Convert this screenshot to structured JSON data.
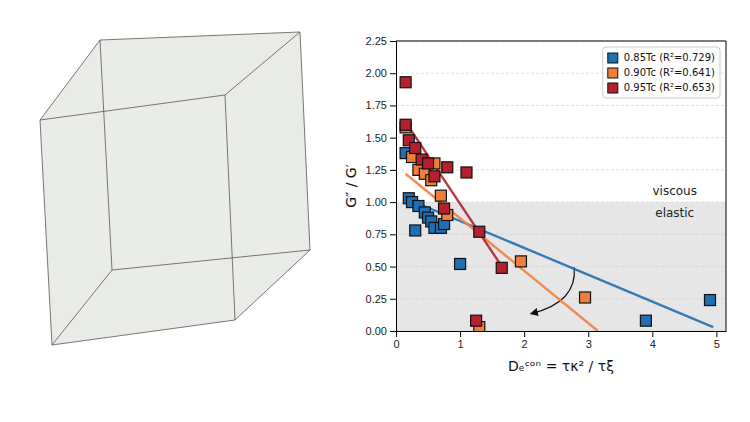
{
  "chart_data": {
    "type": "scatter",
    "x_label": "Dₑᶜᵒⁿ = τκ² / τξ",
    "y_label": "G″ / G′",
    "xlim": [
      0,
      5.15
    ],
    "ylim": [
      0,
      2.25
    ],
    "xticks": [
      0,
      1,
      2,
      3,
      4,
      5
    ],
    "yticks": [
      {
        "value": 0,
        "label": "0.00"
      },
      {
        "value": 0.25,
        "label": "0.25"
      },
      {
        "value": 0.5,
        "label": "0.50"
      },
      {
        "value": 0.75,
        "label": "0.75"
      },
      {
        "value": 1,
        "label": "1.00"
      },
      {
        "value": 1.25,
        "label": "1.25"
      },
      {
        "value": 1.5,
        "label": "1.50"
      },
      {
        "value": 1.75,
        "label": "1.75"
      },
      {
        "value": 2,
        "label": "2.00"
      },
      {
        "value": 2.25,
        "label": "2.25"
      }
    ],
    "grid": true,
    "legend": "upper right",
    "regions": [
      {
        "y0": 0,
        "y1": 1
      }
    ],
    "annotations": [
      {
        "text": "viscous",
        "x": 4.35,
        "y": 1.08
      },
      {
        "text": "elastic",
        "x": 4.35,
        "y": 0.91
      }
    ],
    "series": [
      {
        "name": "0.85Tc (R²=0.729)",
        "color": "#1f6fb4",
        "marker": "square",
        "x": [
          0.15,
          0.2,
          0.25,
          0.3,
          0.35,
          0.45,
          0.5,
          0.55,
          0.6,
          0.7,
          0.75,
          1.0,
          3.9,
          4.9
        ],
        "values": [
          1.38,
          1.03,
          1.0,
          0.78,
          0.97,
          0.92,
          0.88,
          0.85,
          0.8,
          0.8,
          0.83,
          0.52,
          0.08,
          0.24
        ],
        "fit_x": [
          0.15,
          4.95
        ],
        "fit_values": [
          1.03,
          0.03
        ]
      },
      {
        "name": "0.90Tc (R²=0.641)",
        "color": "#f07f3c",
        "marker": "square",
        "x": [
          0.15,
          0.25,
          0.35,
          0.45,
          0.55,
          0.6,
          0.7,
          0.8,
          1.3,
          1.95,
          2.95
        ],
        "values": [
          1.58,
          1.35,
          1.25,
          1.22,
          1.17,
          1.3,
          1.05,
          0.9,
          0.03,
          0.54,
          0.26
        ],
        "fit_x": [
          0.15,
          3.15
        ],
        "fit_values": [
          1.22,
          0.0
        ]
      },
      {
        "name": "0.95Tc (R²=0.653)",
        "color": "#b5202e",
        "marker": "square",
        "x": [
          0.15,
          0.15,
          0.2,
          0.3,
          0.4,
          0.5,
          0.6,
          0.75,
          0.8,
          1.1,
          1.25,
          1.3,
          1.65
        ],
        "values": [
          1.93,
          1.6,
          1.48,
          1.42,
          1.33,
          1.3,
          1.2,
          0.95,
          1.27,
          1.23,
          0.08,
          0.77,
          0.49
        ],
        "fit_x": [
          0.15,
          1.72
        ],
        "fit_values": [
          1.62,
          0.45
        ]
      }
    ]
  }
}
